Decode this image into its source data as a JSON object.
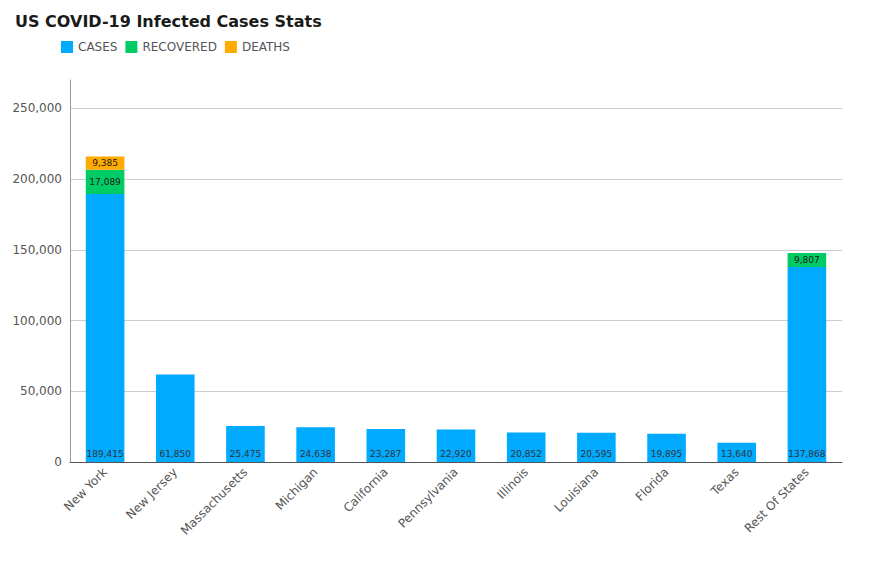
{
  "chart_data": {
    "type": "bar",
    "title": "US COVID-19 Infected Cases Stats",
    "categories": [
      "New York",
      "New Jersey",
      "Massachusetts",
      "Michigan",
      "California",
      "Pennsylvania",
      "Illinois",
      "Louisiana",
      "Florida",
      "Texas",
      "Rest Of States"
    ],
    "series": [
      {
        "name": "CASES",
        "color": "#00aaff",
        "values": [
          189415,
          61850,
          25475,
          24638,
          23287,
          22920,
          20852,
          20595,
          19895,
          13640,
          137868
        ],
        "value_labels": [
          "189,415",
          "61,850",
          "25,475",
          "24,638",
          "23,287",
          "22,920",
          "20,852",
          "20,595",
          "19,895",
          "13,640",
          "137,868"
        ]
      },
      {
        "name": "RECOVERED",
        "color": "#00cc66",
        "values": [
          17089,
          0,
          0,
          0,
          0,
          0,
          0,
          0,
          0,
          0,
          9807
        ],
        "value_labels": [
          "17,089",
          null,
          null,
          null,
          null,
          null,
          null,
          null,
          null,
          null,
          "9,807"
        ]
      },
      {
        "name": "DEATHS",
        "color": "#ffaa00",
        "values": [
          9385,
          0,
          0,
          0,
          0,
          0,
          0,
          0,
          0,
          0,
          0
        ],
        "value_labels": [
          "9,385",
          null,
          null,
          null,
          null,
          null,
          null,
          null,
          null,
          null,
          null
        ]
      }
    ],
    "stacked": true,
    "data_labels": true,
    "ylim": [
      0,
      270000
    ],
    "yticks": [
      0,
      50000,
      100000,
      150000,
      200000,
      250000
    ],
    "grid": true,
    "legend": "upper left"
  }
}
